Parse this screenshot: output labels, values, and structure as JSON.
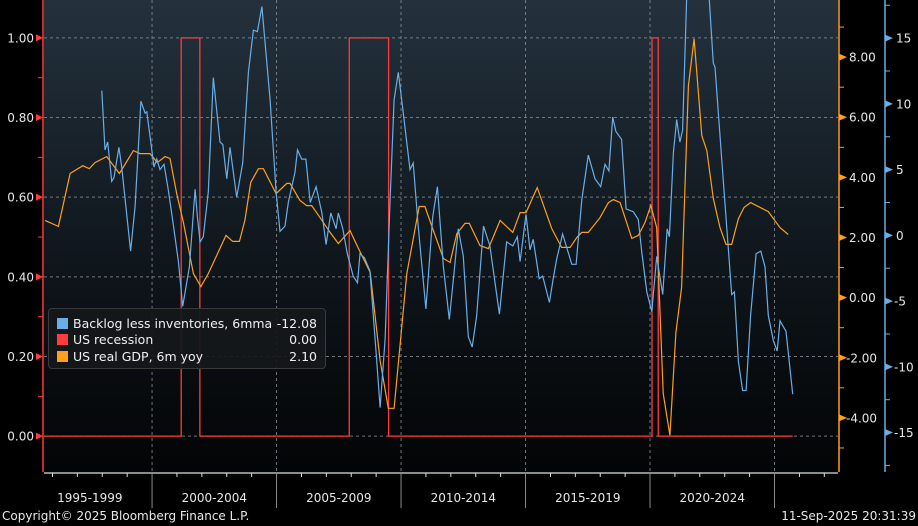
{
  "chart_data": {
    "type": "line",
    "xaxis": {
      "range": [
        1995.66,
        2027.55
      ],
      "period_labels": [
        "1995-1999",
        "2000-2004",
        "2005-2009",
        "2010-2014",
        "2015-2019",
        "2020-2024"
      ],
      "grid": true
    },
    "axes": {
      "left": {
        "series": "US recession",
        "range": [
          -0.09,
          1.095
        ],
        "ticks": [
          0,
          0.2,
          0.4,
          0.6,
          0.8,
          1.0
        ],
        "tick_labels": [
          "0.00",
          "0.20",
          "0.40",
          "0.60",
          "0.80",
          "1.00"
        ],
        "color": "#ff3b3b",
        "grid": true
      },
      "right_inner": {
        "series": "US real GDP, 6m yoy",
        "range": [
          -5.8,
          9.9
        ],
        "ticks": [
          -4,
          -2,
          0,
          2,
          4,
          6,
          8
        ],
        "tick_labels": [
          "-4.00",
          "-2.00",
          "0.00",
          "2.00",
          "4.00",
          "6.00",
          "8.00"
        ],
        "color": "#ff9f1a"
      },
      "right_outer": {
        "series": "Backlog less inventories, 6mma",
        "range": [
          -18,
          17.9
        ],
        "ticks": [
          -15,
          -10,
          -5,
          0,
          5,
          10,
          15
        ],
        "tick_labels": [
          "-15",
          "-10",
          "-5",
          "0",
          "5",
          "10",
          "15"
        ],
        "color": "#6aaee8"
      }
    },
    "legend": {
      "placement": "bottom-left"
    },
    "series": [
      {
        "name": "Backlog less inventories, 6mma",
        "last_value": "-12.08",
        "color": "#6aaee8",
        "axis": "right_outer",
        "x": [
          1997.98,
          1998.11,
          1998.22,
          1998.38,
          1998.47,
          1998.67,
          1998.78,
          1999.14,
          1999.32,
          1999.55,
          1999.72,
          1999.79,
          1999.99,
          2000.08,
          2000.19,
          2000.32,
          2000.48,
          2000.65,
          2000.86,
          2001.06,
          2001.23,
          2001.39,
          2001.5,
          2001.73,
          2001.82,
          2001.93,
          2002.06,
          2002.26,
          2002.46,
          2002.73,
          2002.84,
          2003.0,
          2003.13,
          2003.4,
          2003.64,
          2003.87,
          2004.07,
          2004.23,
          2004.41,
          2004.74,
          2004.98,
          2005.14,
          2005.34,
          2005.47,
          2005.74,
          2005.84,
          2006.01,
          2006.18,
          2006.35,
          2006.59,
          2006.82,
          2006.99,
          2007.18,
          2007.39,
          2007.48,
          2007.66,
          2007.84,
          2008.08,
          2008.25,
          2008.35,
          2008.53,
          2008.75,
          2009.0,
          2009.16,
          2009.36,
          2009.56,
          2009.72,
          2009.89,
          2010.07,
          2010.36,
          2010.49,
          2010.69,
          2011.0,
          2011.27,
          2011.46,
          2011.7,
          2011.94,
          2012.13,
          2012.3,
          2012.5,
          2012.7,
          2012.86,
          2013.04,
          2013.31,
          2013.57,
          2013.95,
          2014.24,
          2014.49,
          2014.67,
          2014.78,
          2015.02,
          2015.18,
          2015.31,
          2015.55,
          2015.69,
          2015.96,
          2016.12,
          2016.25,
          2016.49,
          2016.86,
          2017.03,
          2017.26,
          2017.52,
          2017.79,
          2018.02,
          2018.19,
          2018.35,
          2018.5,
          2018.63,
          2018.86,
          2019.04,
          2019.33,
          2019.53,
          2019.67,
          2019.87,
          2020.07,
          2020.27,
          2020.51,
          2020.69,
          2020.78,
          2020.94,
          2021.07,
          2021.2,
          2021.31,
          2021.47,
          2021.65,
          2021.85,
          2022.05,
          2022.38,
          2022.54,
          2022.61,
          2022.88,
          2023.28,
          2023.39,
          2023.55,
          2023.72,
          2023.86,
          2024.04,
          2024.26,
          2024.45,
          2024.62,
          2024.75,
          2024.95,
          2025.11,
          2025.22,
          2025.46,
          2025.73
        ],
        "y": [
          11.0,
          6.5,
          7.1,
          4.1,
          4.4,
          6.7,
          5.2,
          -1.2,
          2.2,
          10.2,
          9.3,
          9.4,
          6.5,
          5.2,
          5.8,
          5.0,
          5.4,
          3.5,
          0.7,
          -2.0,
          -5.4,
          -3.6,
          -2.4,
          3.5,
          1.4,
          -0.5,
          -0.1,
          3.3,
          12.0,
          7.1,
          6.9,
          4.3,
          6.7,
          2.9,
          5.5,
          12.4,
          15.6,
          15.5,
          17.4,
          10.3,
          3.3,
          0.3,
          0.7,
          2.5,
          4.8,
          6.5,
          5.8,
          5.8,
          2.5,
          3.7,
          1.7,
          -0.7,
          1.7,
          0.5,
          1.7,
          0.5,
          -1.4,
          -3.1,
          -3.6,
          -1.4,
          -1.7,
          -2.7,
          -8.9,
          -13.1,
          -7.9,
          2.7,
          10.3,
          12.4,
          9.6,
          5.0,
          5.5,
          0.7,
          -5.6,
          1.4,
          3.7,
          -2.4,
          -6.4,
          -2.8,
          0.5,
          -1.6,
          -7.7,
          -8.5,
          -6.1,
          0.7,
          -0.8,
          -6.0,
          -0.5,
          -0.8,
          -0.1,
          -2.0,
          1.6,
          -1.1,
          -0.3,
          -3.3,
          -3.1,
          -5.1,
          -3.2,
          -1.8,
          0.1,
          -2.2,
          -2.2,
          2.7,
          6.1,
          4.3,
          3.7,
          5.4,
          4.9,
          9.0,
          7.9,
          7.3,
          2.0,
          1.8,
          1.2,
          -1.3,
          -4.3,
          -5.8,
          -1.6,
          -4.5,
          0.5,
          -0.1,
          6.3,
          8.8,
          7.1,
          8.0,
          17.9,
          21.0,
          23.0,
          20.5,
          17.9,
          13.1,
          12.8,
          5.8,
          -4.5,
          -4.3,
          -9.6,
          -11.8,
          -11.8,
          -6.1,
          -1.4,
          -1.2,
          -2.4,
          -6.1,
          -8.0,
          -8.8,
          -6.5,
          -7.3,
          -12.08
        ]
      },
      {
        "name": "US recession",
        "last_value": "0.00",
        "color": "#ff3b3b",
        "axis": "left",
        "periods": [
          [
            2001.17,
            2001.92
          ],
          [
            2007.92,
            2009.5
          ],
          [
            2020.08,
            2020.33
          ]
        ],
        "range": [
          1995.66,
          2025.73
        ]
      },
      {
        "name": "US real GDP, 6m yoy",
        "last_value": "2.10",
        "color": "#ff9f1a",
        "axis": "right_inner",
        "x": [
          1995.7,
          1996.24,
          1996.71,
          1997.22,
          1997.48,
          1997.71,
          1998.18,
          1998.69,
          1999.25,
          1999.52,
          1999.92,
          2000.21,
          2000.52,
          2000.72,
          2000.99,
          2001.26,
          2001.66,
          2001.96,
          2002.26,
          2002.97,
          2003.24,
          2003.51,
          2003.73,
          2003.96,
          2004.27,
          2004.47,
          2004.98,
          2005.41,
          2005.54,
          2005.94,
          2006.21,
          2006.41,
          2006.75,
          2007.15,
          2007.48,
          2007.95,
          2008.29,
          2008.76,
          2009.16,
          2009.49,
          2009.72,
          2010.23,
          2010.73,
          2010.96,
          2011.3,
          2011.7,
          2011.97,
          2012.24,
          2012.57,
          2012.74,
          2013.17,
          2013.51,
          2013.98,
          2014.49,
          2014.78,
          2015.02,
          2015.47,
          2016.05,
          2016.45,
          2016.79,
          2017.06,
          2017.26,
          2017.52,
          2017.99,
          2018.33,
          2018.53,
          2018.8,
          2019.27,
          2019.53,
          2019.8,
          2020.03,
          2020.27,
          2020.53,
          2020.8,
          2021.04,
          2021.27,
          2021.54,
          2021.77,
          2022.08,
          2022.28,
          2022.54,
          2022.81,
          2023.05,
          2023.28,
          2023.55,
          2023.78,
          2024.04,
          2024.75,
          2025.22,
          2025.55
        ],
        "y": [
          2.57,
          2.37,
          4.13,
          4.39,
          4.29,
          4.49,
          4.69,
          4.13,
          4.89,
          4.79,
          4.79,
          4.49,
          4.69,
          4.63,
          3.46,
          2.5,
          0.8,
          0.37,
          0.8,
          2.07,
          1.87,
          1.87,
          2.57,
          3.83,
          4.29,
          4.29,
          3.46,
          3.8,
          3.8,
          3.23,
          3.06,
          3.06,
          2.66,
          2.17,
          1.8,
          2.23,
          1.63,
          0.84,
          -2.09,
          -3.68,
          -3.68,
          0.8,
          3.03,
          3.03,
          2.23,
          1.3,
          1.17,
          2.13,
          2.47,
          2.47,
          1.73,
          1.63,
          2.57,
          2.17,
          2.83,
          2.83,
          3.66,
          2.3,
          1.67,
          1.67,
          2.0,
          2.17,
          2.17,
          2.66,
          3.16,
          3.26,
          3.16,
          1.97,
          2.07,
          2.5,
          3.06,
          2.33,
          -3.19,
          -4.58,
          -1.16,
          0.34,
          7.05,
          8.61,
          5.39,
          4.89,
          3.3,
          2.33,
          1.77,
          1.77,
          2.63,
          3.0,
          3.16,
          2.86,
          2.33,
          2.1
        ]
      }
    ]
  },
  "footer": {
    "copyright": "Copyright© 2025 Bloomberg Finance L.P.",
    "timestamp": "11-Sep-2025 20:31:39"
  }
}
